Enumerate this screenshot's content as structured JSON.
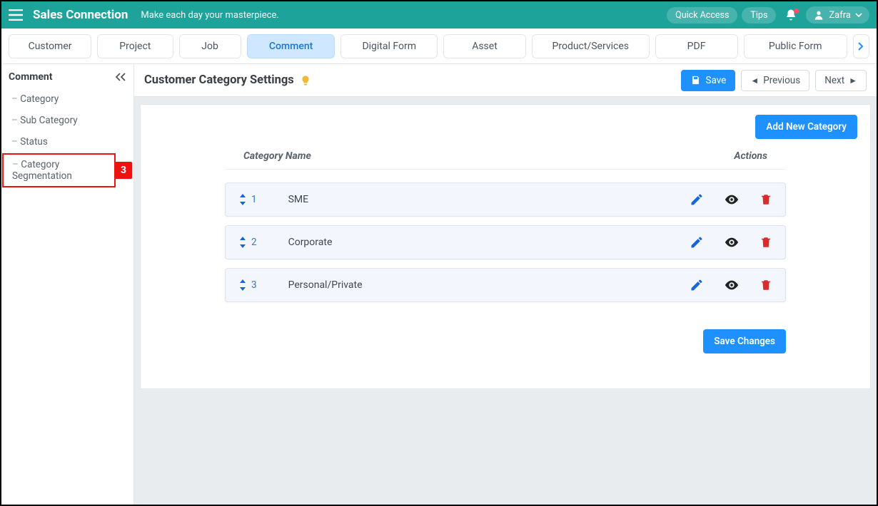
{
  "colors": {
    "teal": "#1ea39b",
    "blue": "#1e90ff",
    "tab_active_bg": "#cfe8ff",
    "red_callout": "#e11",
    "row_bg": "#f3f7fd",
    "edit_blue": "#1565d8",
    "eye_black": "#222",
    "trash_red": "#d92b2b"
  },
  "header": {
    "brand": "Sales Connection",
    "tagline": "Make each day your masterpiece.",
    "quick_access": "Quick Access",
    "tips": "Tips",
    "user": "Zafra"
  },
  "tabs": [
    {
      "label": "Customer",
      "width": 120
    },
    {
      "label": "Project",
      "width": 110
    },
    {
      "label": "Job",
      "width": 90
    },
    {
      "label": "Comment",
      "width": 128,
      "active": true
    },
    {
      "label": "Digital Form",
      "width": 140
    },
    {
      "label": "Asset",
      "width": 120
    },
    {
      "label": "Product/Services",
      "width": 170
    },
    {
      "label": "PDF",
      "width": 120
    },
    {
      "label": "Public Form",
      "width": 150
    }
  ],
  "sidebar": {
    "title": "Comment",
    "items": [
      {
        "label": "Category"
      },
      {
        "label": "Sub Category"
      },
      {
        "label": "Status"
      },
      {
        "label": "Category Segmentation",
        "highlighted": true,
        "badge": "3"
      }
    ]
  },
  "page": {
    "title": "Customer Category Settings",
    "save": "Save",
    "previous": "Previous",
    "next": "Next",
    "add_category": "Add New Category",
    "th_name": "Category Name",
    "th_actions": "Actions",
    "save_changes": "Save Changes"
  },
  "categories": [
    {
      "index": "1",
      "name": "SME"
    },
    {
      "index": "2",
      "name": "Corporate"
    },
    {
      "index": "3",
      "name": "Personal/Private"
    }
  ]
}
